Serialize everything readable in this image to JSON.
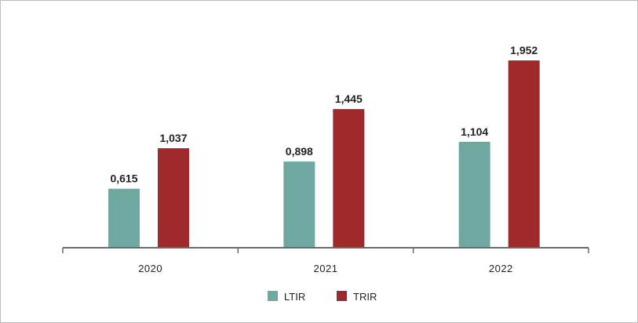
{
  "chart_data": {
    "type": "bar",
    "categories": [
      "2020",
      "2021",
      "2022"
    ],
    "series": [
      {
        "name": "LTIR",
        "values": [
          0.615,
          0.898,
          1.104
        ],
        "labels": [
          "0,615",
          "0,898",
          "1,104"
        ],
        "color": "#6fa8a0"
      },
      {
        "name": "TRIR",
        "values": [
          1.037,
          1.445,
          1.952
        ],
        "labels": [
          "1,037",
          "1,445",
          "1,952"
        ],
        "color": "#9e2a2b"
      }
    ],
    "title": "",
    "xlabel": "",
    "ylabel": "",
    "ylim": [
      0,
      2.0
    ],
    "grid": false,
    "legend_position": "bottom-center",
    "axis_color": "#6b6b6b"
  }
}
